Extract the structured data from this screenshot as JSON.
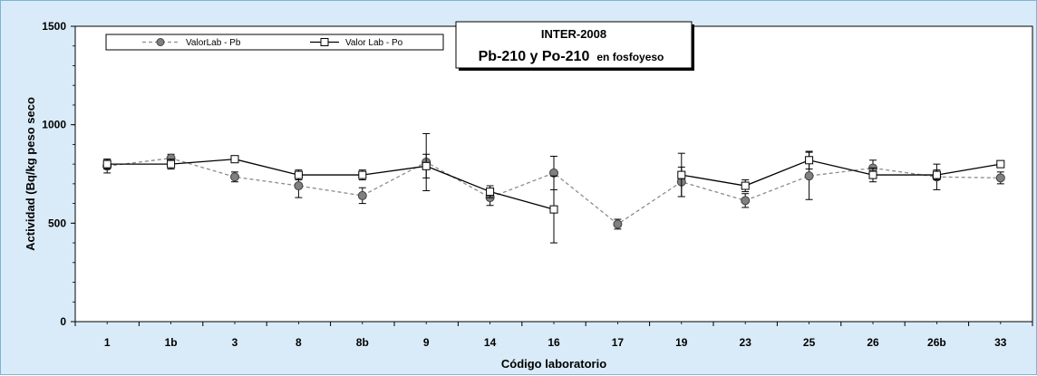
{
  "chart_data": {
    "type": "line",
    "title": "INTER-2008",
    "subtitle_main": "Pb-210 y Po-210",
    "subtitle_suffix": "en fosfoyeso",
    "xlabel": "Código laboratorio",
    "ylabel": "Actividad (Bq/kg peso seco",
    "ylim": [
      0,
      1500
    ],
    "yticks": [
      "0",
      "500",
      "1000",
      "1500"
    ],
    "categories": [
      "1",
      "1b",
      "3",
      "8",
      "8b",
      "9",
      "14",
      "16",
      "17",
      "19",
      "23",
      "25",
      "26",
      "26b",
      "33"
    ],
    "legend_position": "top-left",
    "grid": false,
    "series": [
      {
        "name": "ValorLab - Pb",
        "style": "dashed",
        "marker": "circle",
        "color": "#8c8c8c",
        "values": [
          790,
          830,
          735,
          690,
          640,
          810,
          630,
          755,
          495,
          710,
          615,
          740,
          780,
          735,
          730
        ],
        "errors": [
          35,
          20,
          25,
          60,
          40,
          145,
          40,
          85,
          25,
          75,
          35,
          120,
          40,
          65,
          30
        ]
      },
      {
        "name": "Valor Lab - Po",
        "style": "solid",
        "marker": "square",
        "color": "#000000",
        "values": [
          800,
          800,
          825,
          745,
          745,
          790,
          660,
          570,
          null,
          745,
          690,
          820,
          745,
          745,
          800
        ],
        "errors": [
          25,
          25,
          15,
          25,
          25,
          60,
          30,
          170,
          null,
          110,
          30,
          45,
          35,
          25,
          10
        ]
      }
    ]
  }
}
